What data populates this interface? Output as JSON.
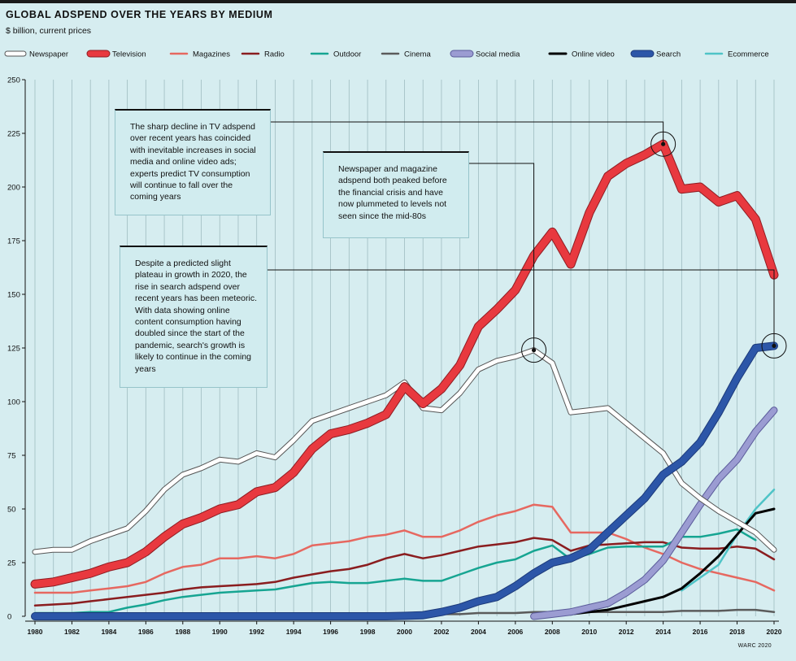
{
  "header": {
    "title": "GLOBAL ADSPEND OVER THE YEARS BY MEDIUM",
    "subtitle": "$ billion, current prices"
  },
  "annotations": [
    "The sharp decline in TV adspend over recent years has coincided with inevitable increases in social media and online video ads; experts predict TV consumption will continue to fall over the coming years",
    "Newspaper and magazine adspend both peaked before the financial crisis and have now plummeted to levels not seen since the mid-80s",
    "Despite a predicted slight plateau in growth in 2020, the rise in search adspend over recent years has been meteoric. With data showing online content consumption having doubled since the start of the pandemic, search's growth is likely to continue in the coming years"
  ],
  "credit": "WARC 2020",
  "chart_data": {
    "type": "line",
    "title": "GLOBAL ADSPEND OVER THE YEARS BY MEDIUM",
    "ylabel": "$ billion, current prices",
    "xlim": [
      1980,
      2020
    ],
    "ylim": [
      0,
      250
    ],
    "x_ticks": [
      "1980",
      "1982",
      "1984",
      "1986",
      "1988",
      "1990",
      "1992",
      "1994",
      "1996",
      "1998",
      "2000",
      "2002",
      "2004",
      "2006",
      "2008",
      "2010",
      "2012",
      "2014",
      "2016",
      "2018",
      "2020"
    ],
    "y_ticks": [
      "0",
      "25",
      "50",
      "75",
      "100",
      "125",
      "150",
      "175",
      "200",
      "225",
      "250"
    ],
    "grid": "vertical lines each year",
    "legend_position": "top",
    "x": [
      1980,
      1981,
      1982,
      1983,
      1984,
      1985,
      1986,
      1987,
      1988,
      1989,
      1990,
      1991,
      1992,
      1993,
      1994,
      1995,
      1996,
      1997,
      1998,
      1999,
      2000,
      2001,
      2002,
      2003,
      2004,
      2005,
      2006,
      2007,
      2008,
      2009,
      2010,
      2011,
      2012,
      2013,
      2014,
      2015,
      2016,
      2017,
      2018,
      2019,
      2020
    ],
    "series": [
      {
        "name": "Newspaper",
        "color": "#ffffff",
        "outline": "#555555",
        "values": [
          30,
          31,
          31,
          35,
          38,
          41,
          49,
          59,
          66,
          69,
          73,
          72,
          76,
          74,
          82,
          91,
          94,
          97,
          100,
          103,
          109,
          97,
          96,
          104,
          115,
          119,
          121,
          124,
          118,
          95,
          96,
          97,
          90,
          83,
          76,
          62,
          55,
          49,
          44,
          39,
          31
        ]
      },
      {
        "name": "Television",
        "color": "#e8393f",
        "outline": "#8e1c22",
        "values": [
          15,
          16,
          18,
          20,
          23,
          25,
          30,
          37,
          43,
          46,
          50,
          52,
          58,
          60,
          67,
          78,
          85,
          87,
          90,
          94,
          107,
          99,
          106,
          117,
          135,
          143,
          152,
          168,
          179,
          164,
          188,
          205,
          211,
          215,
          220,
          199,
          200,
          193,
          196,
          185,
          159
        ]
      },
      {
        "name": "Magazines",
        "color": "#e66860",
        "values": [
          11,
          11,
          11,
          12,
          13,
          14,
          16,
          20,
          23,
          24,
          27,
          27,
          28,
          27,
          29,
          33,
          34,
          35,
          37,
          38,
          40,
          37,
          37,
          40,
          44,
          47,
          49,
          52,
          51,
          39,
          39,
          39,
          36,
          32,
          29,
          25,
          22,
          20,
          18,
          16,
          12
        ]
      },
      {
        "name": "Radio",
        "color": "#8a1d1f",
        "values": [
          5,
          5.5,
          6,
          7,
          8,
          9,
          10,
          11,
          12.5,
          13.5,
          14,
          14.5,
          15,
          16,
          18,
          19.5,
          21,
          22,
          24,
          27,
          29,
          27,
          28.5,
          30.5,
          32.5,
          33.5,
          34.5,
          36.5,
          35.5,
          30.5,
          33,
          33.5,
          34,
          34.5,
          34.5,
          32,
          31.5,
          31.5,
          32.5,
          31.5,
          26.5
        ]
      },
      {
        "name": "Outdoor",
        "color": "#16a592",
        "values": [
          1.5,
          1.5,
          1.5,
          2,
          2,
          4,
          5.5,
          7.5,
          9,
          10,
          11,
          11.5,
          12,
          12.5,
          14,
          15.5,
          16,
          15.5,
          15.5,
          16.5,
          17.5,
          16.5,
          16.5,
          19.5,
          22.5,
          25,
          26.5,
          30.5,
          33,
          26.5,
          29,
          32,
          32.5,
          32.5,
          32.5,
          37,
          37,
          38.5,
          40.5,
          35.5,
          null
        ]
      },
      {
        "name": "Cinema",
        "color": "#5b5b5b",
        "values": [
          0.5,
          0.5,
          0.5,
          0.5,
          0.5,
          0.5,
          0.5,
          0.5,
          0.5,
          0.5,
          0.5,
          0.5,
          0.5,
          0.5,
          0.5,
          0.5,
          0.5,
          0.5,
          0.5,
          0.5,
          0.5,
          0.5,
          1,
          1,
          1.5,
          1.5,
          1.5,
          2,
          2,
          2,
          2,
          2,
          2,
          2,
          2,
          2.5,
          2.5,
          2.5,
          3,
          3,
          2
        ]
      },
      {
        "name": "Social media",
        "color": "#9b9cd2",
        "outline": "#5a5b9a",
        "values": [
          null,
          null,
          null,
          null,
          null,
          null,
          null,
          null,
          null,
          null,
          null,
          null,
          null,
          null,
          null,
          null,
          null,
          null,
          null,
          null,
          null,
          null,
          null,
          null,
          null,
          null,
          null,
          0,
          1,
          2,
          4,
          6,
          11,
          17,
          26,
          39,
          52,
          64,
          73,
          86,
          96
        ]
      },
      {
        "name": "Online video",
        "color": "#000000",
        "values": [
          null,
          null,
          null,
          null,
          null,
          null,
          null,
          null,
          null,
          null,
          null,
          null,
          null,
          null,
          null,
          null,
          null,
          null,
          null,
          null,
          null,
          null,
          null,
          null,
          null,
          null,
          null,
          0.5,
          0.5,
          1,
          2,
          3,
          5,
          7,
          9,
          13,
          20,
          28,
          38,
          48,
          50
        ]
      },
      {
        "name": "Search",
        "color": "#2c56a8",
        "outline": "#1c3a7a",
        "values": [
          0,
          0,
          0,
          0,
          0,
          0,
          0,
          0,
          0,
          0,
          0,
          0,
          0,
          0,
          0,
          0,
          0,
          0,
          0,
          0,
          0.2,
          0.5,
          2,
          4,
          7,
          9,
          14,
          20,
          25,
          27,
          31,
          39,
          47,
          55,
          66,
          72,
          81,
          95,
          111,
          125,
          126
        ]
      },
      {
        "name": "Ecommerce",
        "color": "#4fc4c7",
        "values": [
          null,
          null,
          null,
          null,
          null,
          null,
          null,
          null,
          null,
          null,
          null,
          null,
          null,
          null,
          null,
          null,
          null,
          null,
          null,
          null,
          null,
          null,
          null,
          null,
          null,
          null,
          null,
          null,
          null,
          null,
          null,
          null,
          null,
          null,
          null,
          12,
          18,
          24,
          38,
          50,
          59
        ]
      }
    ],
    "annotations": [
      {
        "text": "The sharp decline in TV adspend over recent years has coincided with inevitable increases in social media and online video ads; experts predict TV consumption will continue to fall over the coming years",
        "points_to": {
          "series": "Television",
          "x": 2014,
          "y": 220
        }
      },
      {
        "text": "Newspaper and magazine adspend both peaked before the financial crisis and have now plummeted to levels not seen since the mid-80s",
        "points_to": {
          "series": "Newspaper",
          "x": 2007,
          "y": 124
        }
      },
      {
        "text": "Despite a predicted slight plateau in growth in 2020, the rise in search adspend over recent years has been meteoric. With data showing online content consumption having doubled since the start of the pandemic, search's growth is likely to continue in the coming years",
        "points_to": {
          "series": "Search",
          "x": 2020,
          "y": 126
        }
      }
    ]
  }
}
